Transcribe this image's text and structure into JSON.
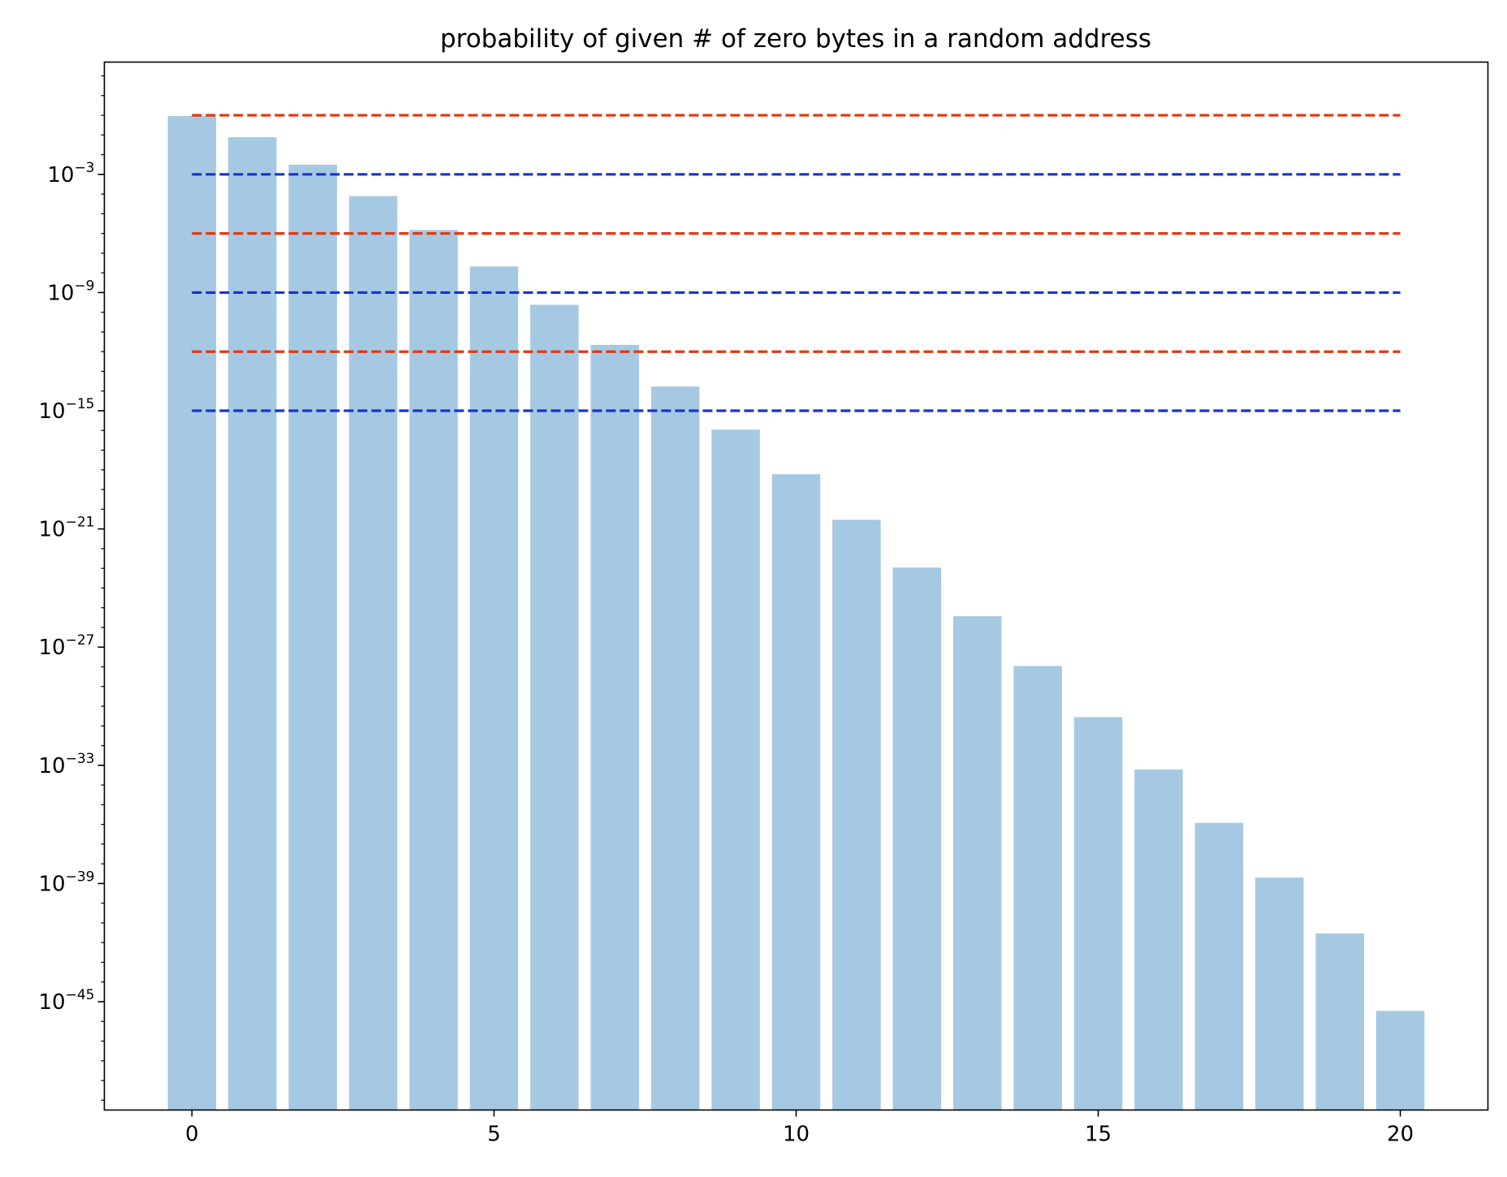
{
  "chart_data": {
    "type": "bar",
    "title": "probability of given # of zero bytes in a random address",
    "xlabel": "",
    "ylabel": "",
    "yscale": "log",
    "categories": [
      0,
      1,
      2,
      3,
      4,
      5,
      6,
      7,
      8,
      9,
      10,
      11,
      12,
      13,
      14,
      15,
      16,
      17,
      18,
      19,
      20
    ],
    "values": [
      0.92,
      0.077,
      0.0031,
      7.9e-05,
      1.5e-06,
      2.1e-08,
      2.4e-10,
      2.2e-12,
      1.7e-14,
      1.1e-16,
      6e-19,
      2.9e-21,
      1.1e-23,
      3.7e-26,
      1.1e-28,
      2.8e-31,
      6.1e-34,
      1.2e-36,
      2e-39,
      2.9e-42,
      3.4e-46
    ],
    "bar_color": "#a0c6e0",
    "bar_opacity": 0.95,
    "reference_lines": [
      {
        "value": 1.0,
        "color": "#e03a14",
        "style": "dashed",
        "x_range": [
          0,
          20
        ]
      },
      {
        "value": 0.001,
        "color": "#1434d2",
        "style": "dashed",
        "x_range": [
          0,
          20
        ]
      },
      {
        "value": 1e-06,
        "color": "#e03a14",
        "style": "dashed",
        "x_range": [
          0,
          20
        ]
      },
      {
        "value": 1e-09,
        "color": "#1434d2",
        "style": "dashed",
        "x_range": [
          0,
          20
        ]
      },
      {
        "value": 1e-12,
        "color": "#e03a14",
        "style": "dashed",
        "x_range": [
          0,
          20
        ]
      },
      {
        "value": 1e-15,
        "color": "#1434d2",
        "style": "dashed",
        "x_range": [
          0,
          20
        ]
      }
    ],
    "xlim": [
      -1.45,
      21.45
    ],
    "ylim_exp": [
      -50.5,
      2.7
    ],
    "xticks": [
      0,
      5,
      10,
      15,
      20
    ],
    "yticks": [
      {
        "base": "10",
        "exp": "−3",
        "value_exp": -3
      },
      {
        "base": "10",
        "exp": "−9",
        "value_exp": -9
      },
      {
        "base": "10",
        "exp": "−15",
        "value_exp": -15
      },
      {
        "base": "10",
        "exp": "−21",
        "value_exp": -21
      },
      {
        "base": "10",
        "exp": "−27",
        "value_exp": -27
      },
      {
        "base": "10",
        "exp": "−33",
        "value_exp": -33
      },
      {
        "base": "10",
        "exp": "−39",
        "value_exp": -39
      },
      {
        "base": "10",
        "exp": "−45",
        "value_exp": -45
      }
    ],
    "grid": false,
    "legend": "none"
  }
}
